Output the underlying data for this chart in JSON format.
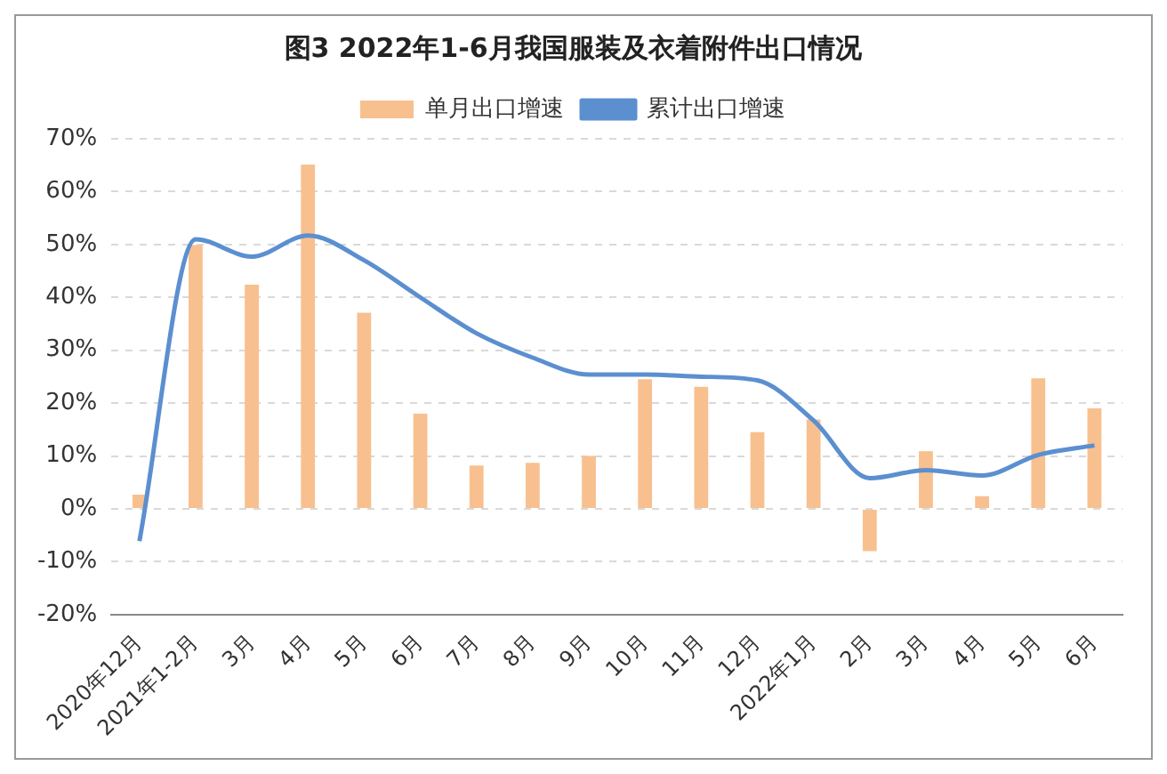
{
  "chart_data": {
    "type": "bar",
    "title": "图3 2022年1-6月我国服装及衣着附件出口情况",
    "categories": [
      "2020年12月",
      "2021年1-2月",
      "3月",
      "4月",
      "5月",
      "6月",
      "7月",
      "8月",
      "9月",
      "10月",
      "11月",
      "12月",
      "2022年1月",
      "2月",
      "3月",
      "4月",
      "5月",
      "6月"
    ],
    "series": [
      {
        "name": "单月出口增速",
        "color": "#f8c08f",
        "values": [
          2.7,
          49.9,
          42.4,
          65.1,
          37.1,
          18,
          8.2,
          8.7,
          10,
          24.5,
          23.1,
          14.5,
          16.9,
          -8,
          10.9,
          2.4,
          24.7,
          19
        ]
      },
      {
        "name": "累计出口增速",
        "type": "line",
        "color": "#5b8fd0",
        "values": [
          -6.1,
          51,
          47.7,
          51.7,
          47,
          40,
          33.2,
          28.6,
          25.4,
          25.4,
          25,
          24.3,
          16.7,
          5.8,
          7.3,
          6.3,
          10.2,
          12
        ]
      }
    ],
    "ylim": [
      -20,
      70
    ],
    "yticks": [
      {
        "value": -20,
        "label": "-20%"
      },
      {
        "value": -10,
        "label": "-10%"
      },
      {
        "value": 0,
        "label": "0%"
      },
      {
        "value": 10,
        "label": "10%"
      },
      {
        "value": 20,
        "label": "20%"
      },
      {
        "value": 30,
        "label": "30%"
      },
      {
        "value": 40,
        "label": "40%"
      },
      {
        "value": 50,
        "label": "50%"
      },
      {
        "value": 60,
        "label": "60%"
      },
      {
        "value": 70,
        "label": "70%"
      }
    ],
    "grid": "y",
    "legend": "top",
    "marker": "none",
    "line_style": "solid"
  }
}
